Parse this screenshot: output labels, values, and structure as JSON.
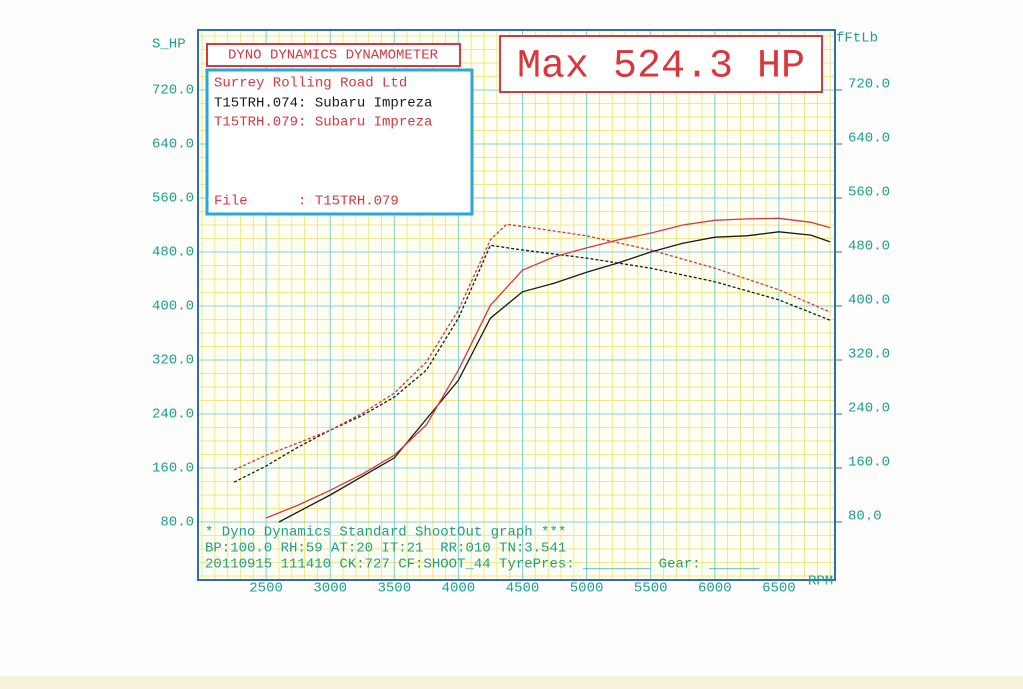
{
  "chart_data": {
    "type": "line",
    "header": "DYNO DYNAMICS DYNAMOMETER",
    "max_label": "Max 524.3 HP",
    "company": "Surrey Rolling Road Ltd",
    "file_label": "File      : T15TRH.079",
    "ylabel": "S_HP",
    "y2label": "fFtLb",
    "xlabel": "RPM",
    "footer": [
      "* Dyno Dynamics Standard ShootOut graph ***",
      "BP:100.0 RH:59 AT:20 IT:21  RR:010 TN:3.541",
      "20110915 111410 CK:727 CF:SHOOT_44 TyrePres: ________ Gear: ______"
    ],
    "xlim": [
      2000,
      7000
    ],
    "xticks": [
      2500,
      3000,
      3500,
      4000,
      4500,
      5000,
      5500,
      6000,
      6500
    ],
    "ylim": [
      0,
      800
    ],
    "yticks": [
      {
        "value": 80,
        "label": "80.0"
      },
      {
        "value": 160,
        "label": "160.0"
      },
      {
        "value": 240,
        "label": "240.0"
      },
      {
        "value": 320,
        "label": "320.0"
      },
      {
        "value": 400,
        "label": "400.0"
      },
      {
        "value": 480,
        "label": "480.0"
      },
      {
        "value": 560,
        "label": "560.0"
      },
      {
        "value": 640,
        "label": "640.0"
      },
      {
        "value": 720,
        "label": "720.0"
      }
    ],
    "y2lim": [
      0,
      800
    ],
    "y2ticks": [
      {
        "value": 80,
        "label": "80.0"
      },
      {
        "value": 160,
        "label": "160.0"
      },
      {
        "value": 240,
        "label": "240.0"
      },
      {
        "value": 320,
        "label": "320.0"
      },
      {
        "value": 400,
        "label": "400.0"
      },
      {
        "value": 480,
        "label": "480.0"
      },
      {
        "value": 560,
        "label": "560.0"
      },
      {
        "value": 640,
        "label": "640.0"
      },
      {
        "value": 720,
        "label": "720.0"
      }
    ],
    "grid": true,
    "runs": [
      {
        "name": "T15TRH.074: Subaru Impreza",
        "color": "#1a1a1a",
        "power": {
          "x": [
            2600,
            3000,
            3500,
            4000,
            4250,
            4500,
            4750,
            5000,
            5250,
            5500,
            5750,
            6000,
            6250,
            6500,
            6750,
            6900
          ],
          "values": [
            80,
            120,
            175,
            290,
            382,
            421,
            434,
            450,
            464,
            480,
            493,
            502,
            504,
            510,
            505,
            495
          ]
        },
        "torque": {
          "x": [
            2250,
            2500,
            2750,
            3000,
            3250,
            3500,
            3750,
            4000,
            4250,
            4500,
            5000,
            5500,
            6000,
            6500,
            6900
          ],
          "values": [
            139,
            163,
            191,
            216,
            238,
            265,
            305,
            382,
            490,
            483,
            471,
            456,
            436,
            409,
            379
          ]
        }
      },
      {
        "name": "T15TRH.079: Subaru Impreza",
        "color": "#d9363e",
        "power": {
          "x": [
            2500,
            2750,
            3000,
            3250,
            3500,
            3750,
            4000,
            4250,
            4500,
            4750,
            5000,
            5250,
            5500,
            5750,
            6000,
            6250,
            6500,
            6750,
            6900
          ],
          "values": [
            86,
            105,
            127,
            151,
            179,
            224,
            305,
            401,
            453,
            473,
            486,
            498,
            508,
            520,
            527,
            529,
            530,
            524,
            516
          ]
        },
        "torque": {
          "x": [
            2250,
            2500,
            2750,
            3000,
            3250,
            3500,
            3750,
            4000,
            4250,
            4375,
            4500,
            5000,
            5500,
            6000,
            6500,
            6900
          ],
          "values": [
            157,
            179,
            197,
            216,
            241,
            271,
            317,
            394,
            498,
            521,
            518,
            504,
            483,
            456,
            424,
            391
          ]
        }
      }
    ]
  }
}
